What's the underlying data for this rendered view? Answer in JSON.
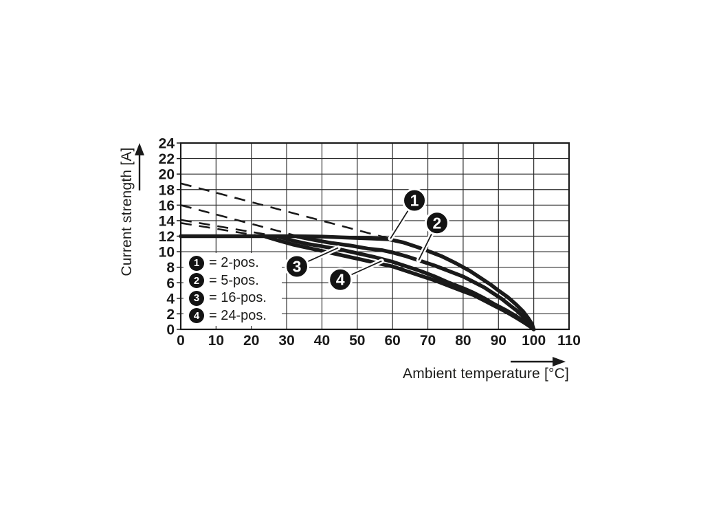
{
  "chart_data": {
    "type": "line",
    "title": "",
    "xlabel": "Ambient temperature [°C]",
    "ylabel": "Current strength [A]",
    "xlim": [
      0,
      110
    ],
    "ylim": [
      0,
      24
    ],
    "xticks": [
      0,
      10,
      20,
      30,
      40,
      50,
      60,
      70,
      80,
      90,
      100,
      110
    ],
    "yticks": [
      0,
      2,
      4,
      6,
      8,
      10,
      12,
      14,
      16,
      18,
      20,
      22,
      24
    ],
    "grid": true,
    "ink_color": "#1a1a1a",
    "grid_color": "#2b2b2b",
    "series": [
      {
        "name": "1 = 2-pos. derating line",
        "style": "dashed",
        "width": 2.6,
        "points": [
          [
            0,
            18.8
          ],
          [
            59,
            11.7
          ]
        ]
      },
      {
        "name": "2 = 5-pos. derating line",
        "style": "dashed",
        "width": 2.6,
        "points": [
          [
            0,
            16.0
          ],
          [
            34,
            11.9
          ]
        ]
      },
      {
        "name": "3 = 16-pos. derating line",
        "style": "dashed",
        "width": 2.6,
        "points": [
          [
            0,
            14.1
          ],
          [
            29,
            11.85
          ]
        ]
      },
      {
        "name": "4 = 24-pos. derating line",
        "style": "dashed",
        "width": 2.6,
        "points": [
          [
            0,
            13.7
          ],
          [
            25,
            11.85
          ]
        ]
      },
      {
        "name": "1 = 2-pos.",
        "style": "solid",
        "width": 5.5,
        "points": [
          [
            0,
            12
          ],
          [
            25,
            12
          ],
          [
            32,
            12
          ],
          [
            40,
            11.95
          ],
          [
            48,
            11.8
          ],
          [
            54,
            11.7
          ],
          [
            59,
            11.6
          ],
          [
            63,
            11.2
          ],
          [
            67,
            10.6
          ],
          [
            70,
            10.1
          ],
          [
            74,
            9.4
          ],
          [
            78,
            8.5
          ],
          [
            82,
            7.5
          ],
          [
            85,
            6.6
          ],
          [
            88,
            5.7
          ],
          [
            90,
            5.0
          ],
          [
            92.5,
            4.2
          ],
          [
            95,
            3.2
          ],
          [
            97,
            2.3
          ],
          [
            98.5,
            1.4
          ],
          [
            99.5,
            0.7
          ],
          [
            100,
            0
          ]
        ]
      },
      {
        "name": "2 = 5-pos.",
        "style": "solid",
        "width": 5.5,
        "points": [
          [
            33,
            11.95
          ],
          [
            38,
            11.5
          ],
          [
            43,
            11.1
          ],
          [
            48,
            10.8
          ],
          [
            53,
            10.4
          ],
          [
            57,
            10.2
          ],
          [
            60,
            9.9
          ],
          [
            64,
            9.4
          ],
          [
            68,
            8.8
          ],
          [
            72,
            8.2
          ],
          [
            76,
            7.5
          ],
          [
            80,
            6.8
          ],
          [
            83,
            6.1
          ],
          [
            86,
            5.4
          ],
          [
            89,
            4.5
          ],
          [
            91,
            3.9
          ],
          [
            93.5,
            3.0
          ],
          [
            95.5,
            2.3
          ],
          [
            97.5,
            1.4
          ],
          [
            99,
            0.7
          ],
          [
            100,
            0
          ]
        ]
      },
      {
        "name": "3 = 16-pos.",
        "style": "solid",
        "width": 5.5,
        "points": [
          [
            28,
            11.9
          ],
          [
            32,
            11.4
          ],
          [
            36,
            11.0
          ],
          [
            40,
            10.7
          ],
          [
            45,
            10.3
          ],
          [
            50,
            9.8
          ],
          [
            55,
            9.3
          ],
          [
            60,
            8.7
          ],
          [
            64,
            8.1
          ],
          [
            68,
            7.5
          ],
          [
            72,
            6.8
          ],
          [
            76,
            6.0
          ],
          [
            80,
            5.3
          ],
          [
            83,
            4.7
          ],
          [
            86,
            4.0
          ],
          [
            89,
            3.2
          ],
          [
            92,
            2.5
          ],
          [
            95,
            1.7
          ],
          [
            97.5,
            0.9
          ],
          [
            99,
            0.4
          ],
          [
            100,
            0
          ]
        ]
      },
      {
        "name": "4 = 24-pos.",
        "style": "solid",
        "width": 5.5,
        "points": [
          [
            24,
            11.95
          ],
          [
            28,
            11.4
          ],
          [
            32,
            10.9
          ],
          [
            36,
            10.5
          ],
          [
            40,
            10.1
          ],
          [
            45,
            9.6
          ],
          [
            50,
            9.1
          ],
          [
            55,
            8.6
          ],
          [
            60,
            8.1
          ],
          [
            64,
            7.5
          ],
          [
            68,
            6.9
          ],
          [
            72,
            6.3
          ],
          [
            76,
            5.6
          ],
          [
            80,
            4.9
          ],
          [
            83,
            4.4
          ],
          [
            86,
            3.7
          ],
          [
            89,
            3.0
          ],
          [
            92,
            2.3
          ],
          [
            95,
            1.5
          ],
          [
            97.5,
            0.8
          ],
          [
            99,
            0.35
          ],
          [
            100,
            0
          ]
        ]
      }
    ],
    "callouts": [
      {
        "label": "1",
        "circle": [
          66.2,
          16.6
        ],
        "tip": [
          59.4,
          11.7
        ]
      },
      {
        "label": "2",
        "circle": [
          72.6,
          13.7
        ],
        "tip": [
          67.4,
          8.9
        ]
      },
      {
        "label": "3",
        "circle": [
          32.9,
          8.1
        ],
        "tip": [
          44.6,
          10.5
        ]
      },
      {
        "label": "4",
        "circle": [
          45.2,
          6.4
        ],
        "tip": [
          56.9,
          8.8
        ]
      }
    ]
  },
  "legend": {
    "items": [
      {
        "symbol": "1",
        "label": "= 2-pos."
      },
      {
        "symbol": "2",
        "label": "= 5-pos."
      },
      {
        "symbol": "3",
        "label": "= 16-pos."
      },
      {
        "symbol": "4",
        "label": "= 24-pos."
      }
    ]
  }
}
